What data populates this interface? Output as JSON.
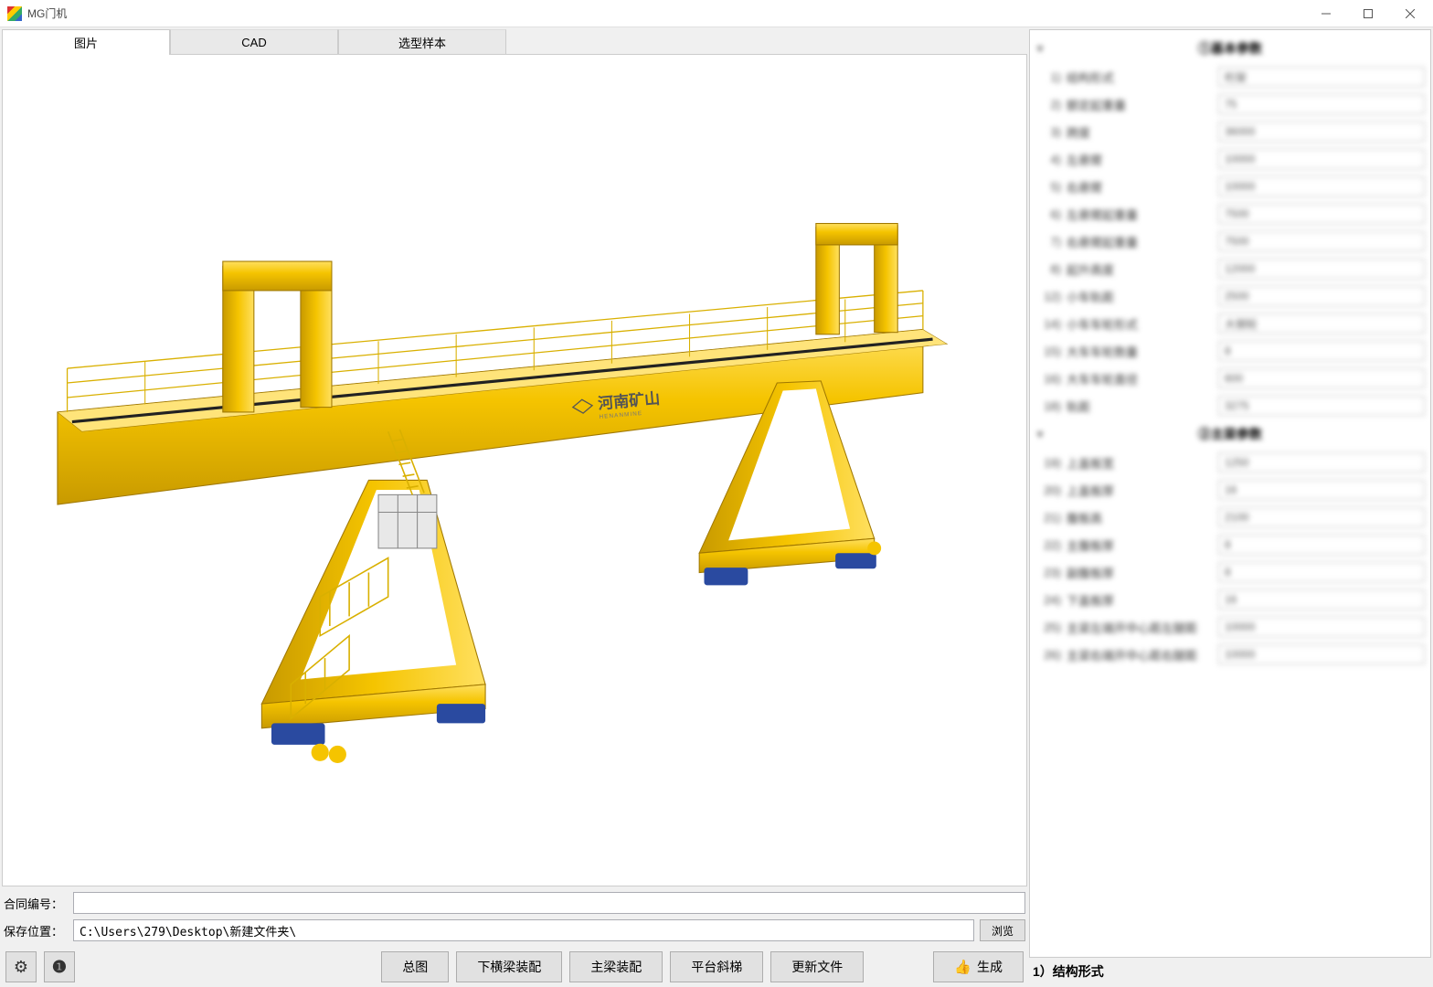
{
  "window": {
    "title": "MG门机"
  },
  "tabs": {
    "t0": "图片",
    "t1": "CAD",
    "t2": "选型样本"
  },
  "crane": {
    "body_color": "#f5c400",
    "body_shadow": "#c89a00",
    "body_highlight": "#ffe060",
    "rail_color": "#222",
    "wheel_color": "#2a4aa0",
    "logo_text": "河南矿山",
    "logo_sub": "HENANMINE"
  },
  "form": {
    "contract_label": "合同编号：",
    "contract_value": "",
    "save_label": "保存位置：",
    "save_value": "C:\\Users\\279\\Desktop\\新建文件夹\\",
    "browse": "浏览"
  },
  "toolbar": {
    "btn_overview": "总图",
    "btn_crossbeam": "下横梁装配",
    "btn_mainbeam": "主梁装配",
    "btn_platform": "平台斜梯",
    "btn_update": "更新文件",
    "btn_generate": "生成"
  },
  "params": {
    "section1_title": "①基本参数",
    "section2_title": "②主梁参数",
    "footer": "1）结构形式",
    "s1": [
      {
        "idx": "1)",
        "label": "结构形式",
        "val": "桁架"
      },
      {
        "idx": "2)",
        "label": "额定起重量",
        "val": "75"
      },
      {
        "idx": "3)",
        "label": "跨度",
        "val": "36000"
      },
      {
        "idx": "4)",
        "label": "左悬臂",
        "val": "10000"
      },
      {
        "idx": "5)",
        "label": "右悬臂",
        "val": "10000"
      },
      {
        "idx": "6)",
        "label": "左悬臂起重量",
        "val": "7500"
      },
      {
        "idx": "7)",
        "label": "右悬臂起重量",
        "val": "7500"
      },
      {
        "idx": "8)",
        "label": "起升高度",
        "val": "12000"
      },
      {
        "idx": "12)",
        "label": "小车轨距",
        "val": "2500"
      },
      {
        "idx": "14)",
        "label": "小车车轮形式",
        "val": "大钢轮"
      },
      {
        "idx": "15)",
        "label": "大车车轮数量",
        "val": "8"
      },
      {
        "idx": "16)",
        "label": "大车车轮直径",
        "val": "600"
      },
      {
        "idx": "18)",
        "label": "轨距",
        "val": "3275"
      }
    ],
    "s2": [
      {
        "idx": "19)",
        "label": "上盖板宽",
        "val": "1250"
      },
      {
        "idx": "20)",
        "label": "上盖板厚",
        "val": "16"
      },
      {
        "idx": "21)",
        "label": "腹板高",
        "val": "2100"
      },
      {
        "idx": "22)",
        "label": "主腹板厚",
        "val": "8"
      },
      {
        "idx": "23)",
        "label": "副腹板厚",
        "val": "8"
      },
      {
        "idx": "24)",
        "label": "下盖板厚",
        "val": "16"
      },
      {
        "idx": "25)",
        "label": "主梁左端开中心距左腿距",
        "val": "10000"
      },
      {
        "idx": "26)",
        "label": "主梁右端开中心距右腿距",
        "val": "10000"
      }
    ]
  }
}
